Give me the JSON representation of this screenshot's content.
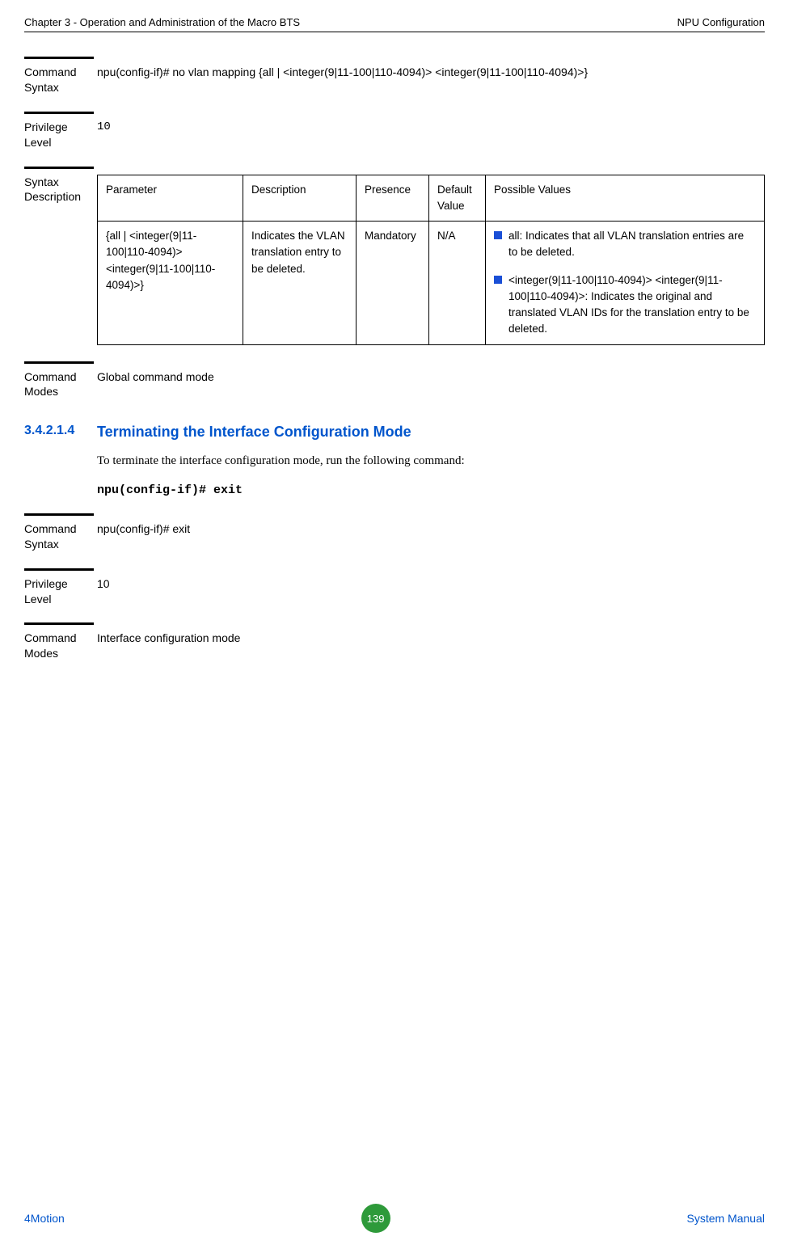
{
  "header": {
    "left": "Chapter 3 - Operation and Administration of the Macro BTS",
    "right": "NPU Configuration"
  },
  "footer": {
    "left": "4Motion",
    "page": "139",
    "right": "System Manual"
  },
  "sections": {
    "cmd_syntax_1": {
      "label": "Command Syntax",
      "value": "npu(config-if)# no vlan mapping {all | <integer(9|11-100|110-4094)> <integer(9|11-100|110-4094)>}"
    },
    "priv_level_1": {
      "label": "Privilege Level",
      "value": "10"
    },
    "syntax_desc": {
      "label": "Syntax Description",
      "columns": [
        "Parameter",
        "Description",
        "Presence",
        "Default Value",
        "Possible Values"
      ],
      "row": {
        "parameter": "{all | <integer(9|11-100|110-4094)> <integer(9|11-100|110-4094)>}",
        "description": "Indicates the VLAN translation entry to be deleted.",
        "presence": "Mandatory",
        "default": "N/A",
        "possible": [
          "all: Indicates that all VLAN translation entries are to be deleted.",
          "<integer(9|11-100|110-4094)> <integer(9|11-100|110-4094)>: Indicates the original and translated VLAN IDs for the translation entry to be deleted."
        ]
      }
    },
    "cmd_modes_1": {
      "label": "Command Modes",
      "value": "Global command mode"
    },
    "subheading": {
      "num": "3.4.2.1.4",
      "title": "Terminating the Interface Configuration Mode"
    },
    "body": "To terminate the interface configuration mode, run the following command:",
    "cmd_line": "npu(config-if)# exit",
    "cmd_syntax_2": {
      "label": "Command Syntax",
      "value": "npu(config-if)# exit"
    },
    "priv_level_2": {
      "label": "Privilege Level",
      "value": "10"
    },
    "cmd_modes_2": {
      "label": "Command Modes",
      "value": "Interface configuration mode"
    }
  },
  "colors": {
    "link_blue": "#0055cc",
    "bullet_blue": "#1a4fd6",
    "badge_green": "#2e9a3a"
  }
}
